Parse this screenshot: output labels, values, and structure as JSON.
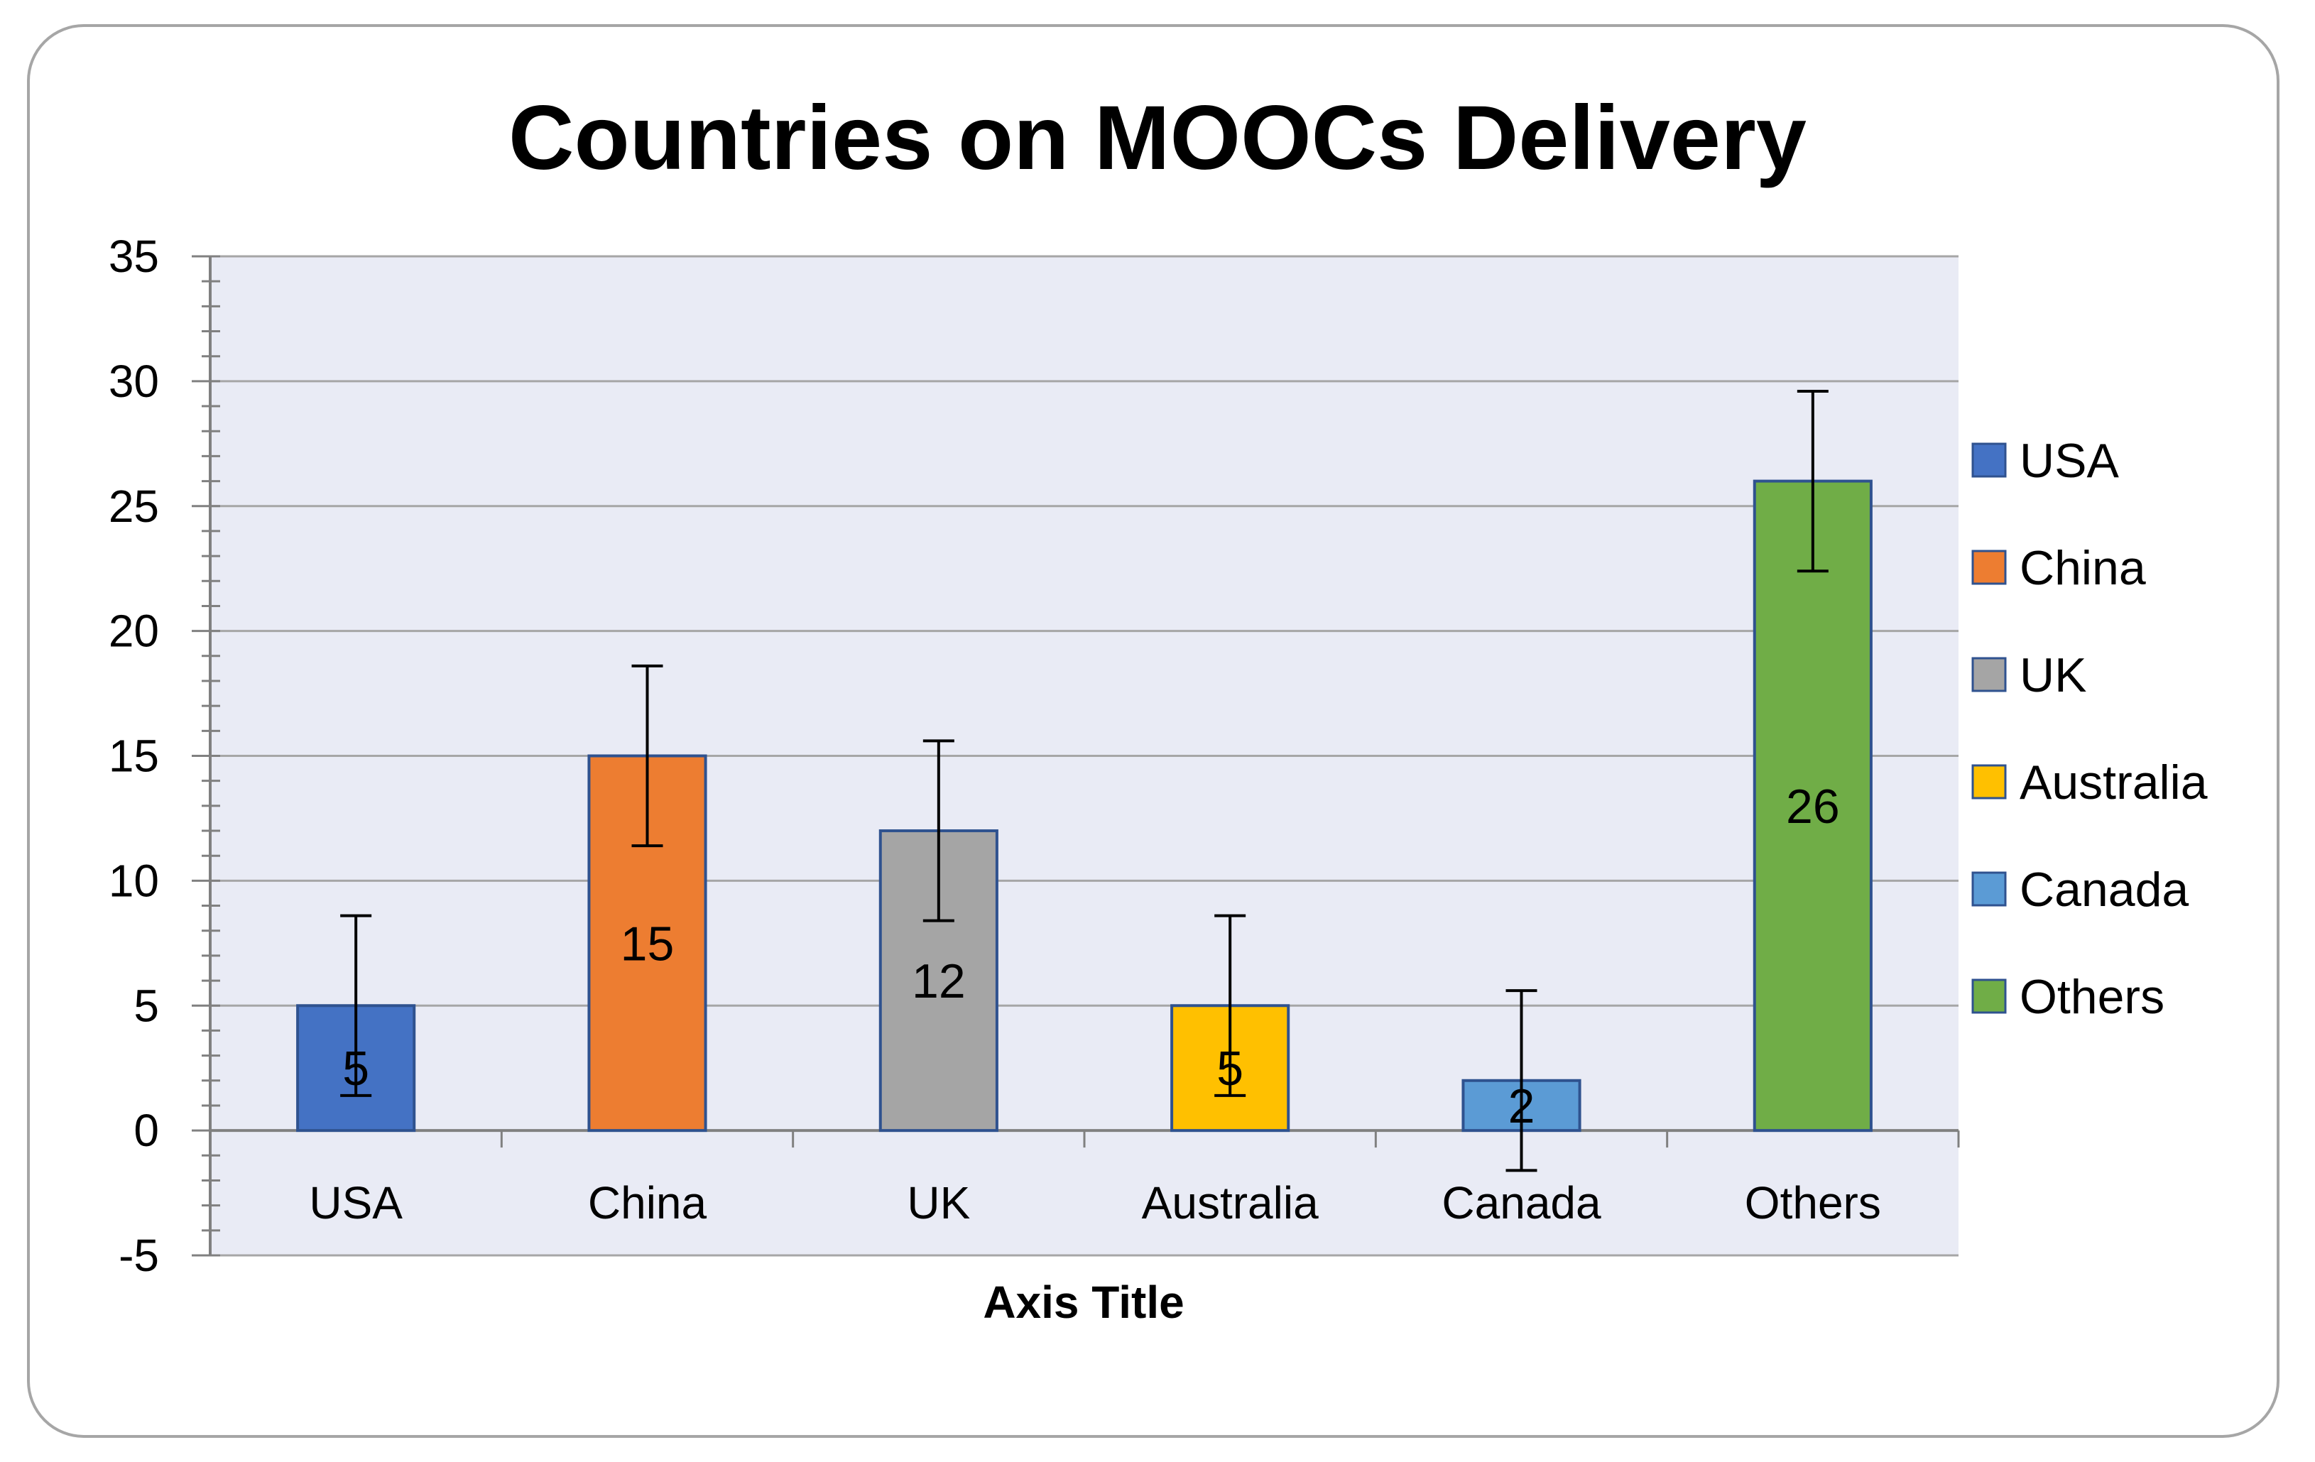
{
  "chart_data": {
    "type": "bar",
    "title": "Countries on MOOCs Delivery",
    "xlabel": "Axis Title",
    "ylabel": "",
    "ylim": [
      -5,
      35
    ],
    "yticks": [
      -5,
      0,
      5,
      10,
      15,
      20,
      25,
      30,
      35
    ],
    "categories": [
      "USA",
      "China",
      "UK",
      "Australia",
      "Canada",
      "Others"
    ],
    "values": [
      5,
      15,
      12,
      5,
      2,
      26
    ],
    "data_labels": [
      "5",
      "15",
      "12",
      "5",
      "2",
      "26"
    ],
    "error_bars": {
      "type": "symmetric",
      "plus_minus": 3.6
    },
    "colors": [
      "#4472c4",
      "#ed7d31",
      "#a5a5a5",
      "#ffc000",
      "#5b9bd5",
      "#70ad47"
    ],
    "bar_edge_color": "#2f528f",
    "plot_background": "#e9ebf5",
    "grid": true,
    "legend": {
      "position": "right",
      "entries": [
        "USA",
        "China",
        "UK",
        "Australia",
        "Canada",
        "Others"
      ]
    }
  }
}
